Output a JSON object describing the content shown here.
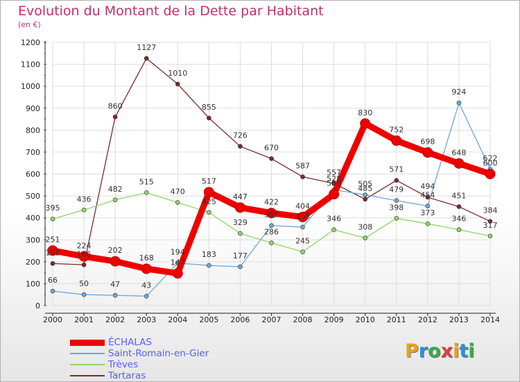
{
  "title": "Evolution du Montant de la Dette par Habitant",
  "subtitle": "(en €)",
  "logo": {
    "text": "Proxiti",
    "colors": [
      "#e8a21a",
      "#2f8fd0",
      "#3aa84a",
      "#d94141",
      "#e8a21a",
      "#2f8fd0",
      "#3aa84a"
    ]
  },
  "chart_data": {
    "type": "line",
    "x": [
      "2000",
      "2001",
      "2002",
      "2003",
      "2004",
      "2005",
      "2006",
      "2007",
      "2008",
      "2009",
      "2010",
      "2011",
      "2012",
      "2013",
      "2014"
    ],
    "ylim": [
      0,
      1200
    ],
    "yticks": [
      "0",
      "100",
      "200",
      "300",
      "400",
      "500",
      "600",
      "700",
      "800",
      "900",
      "1000",
      "1100",
      "1200"
    ],
    "grid": true,
    "legend_position": "bottom-left",
    "series": [
      {
        "name": "Tartaras",
        "color": "#7a2a2a",
        "values": [
          192,
          186,
          860,
          1127,
          1010,
          855,
          726,
          670,
          587,
          557,
          485,
          571,
          494,
          451,
          384
        ],
        "labels": [
          "192",
          "186",
          "860",
          "1127",
          "1010",
          "855",
          "726",
          "670",
          "587",
          "557",
          "485",
          "571",
          "494",
          "451",
          "384"
        ]
      },
      {
        "name": "Trèves",
        "color": "#8fd46a",
        "values": [
          395,
          436,
          482,
          515,
          470,
          425,
          329,
          286,
          245,
          346,
          308,
          398,
          373,
          346,
          317
        ],
        "labels": [
          "395",
          "436",
          "482",
          "515",
          "470",
          "425",
          "329",
          "286",
          "245",
          "346",
          "308",
          "398",
          "373",
          "346",
          "317"
        ]
      },
      {
        "name": "Saint-Romain-en-Gier",
        "color": "#6fa7d8",
        "values": [
          66,
          50,
          47,
          43,
          194,
          183,
          177,
          365,
          358,
          528,
          505,
          479,
          454,
          924,
          622
        ],
        "labels": [
          "66",
          "50",
          "47",
          "43",
          "194",
          "183",
          "177",
          "365",
          "358",
          "528",
          "505",
          "479",
          "454",
          "924",
          "622"
        ]
      },
      {
        "name": "ÉCHALAS",
        "color": "#ee0000",
        "values": [
          251,
          224,
          202,
          168,
          147,
          517,
          447,
          422,
          404,
          508,
          830,
          752,
          698,
          648,
          600
        ],
        "labels": [
          "251",
          "224",
          "202",
          "168",
          "147",
          "517",
          "447",
          "422",
          "404",
          "508",
          "830",
          "752",
          "698",
          "648",
          "600"
        ]
      }
    ]
  },
  "legend_order": [
    "ÉCHALAS",
    "Saint-Romain-en-Gier",
    "Trèves",
    "Tartaras"
  ]
}
